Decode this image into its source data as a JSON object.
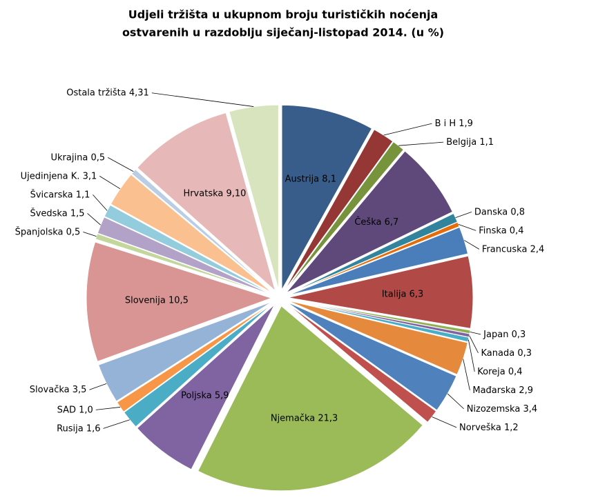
{
  "chart_data": {
    "type": "pie",
    "title": [
      "Udjeli tržišta u ukupnom broju turističkih noćenja",
      "ostvarenih u razdoblju siječanj-listopad 2014. (u %)"
    ],
    "categories": [
      "Austrija",
      "B i H",
      "Belgija",
      "Češka",
      "Danska",
      "Finska",
      "Francuska",
      "Italija",
      "Japan",
      "Kanada",
      "Koreja",
      "Mađarska",
      "Nizozemska",
      "Norveška",
      "Njemačka",
      "Poljska",
      "Rusija",
      "SAD",
      "Slovačka",
      "Slovenija",
      "Španjolska",
      "Švedska",
      "Švicarska",
      "Ujedinjena K.",
      "Ukrajina",
      "Hrvatska",
      "Ostala tržišta"
    ],
    "values": [
      8.1,
      1.9,
      1.1,
      6.7,
      0.8,
      0.4,
      2.4,
      6.3,
      0.3,
      0.3,
      0.4,
      2.9,
      3.4,
      1.2,
      21.3,
      5.9,
      1.6,
      1.0,
      3.5,
      10.5,
      0.5,
      1.5,
      1.1,
      3.1,
      0.5,
      9.1,
      4.31
    ],
    "value_labels": [
      "8,1",
      "1,9",
      "1,1",
      "6,7",
      "0,8",
      "0,4",
      "2,4",
      "6,3",
      "0,3",
      "0,3",
      "0,4",
      "2,9",
      "3,4",
      "1,2",
      "21,3",
      "5,9",
      "1,6",
      "1,0",
      "3,5",
      "10,5",
      "0,5",
      "1,5",
      "1,1",
      "3,1",
      "0,5",
      "9,10",
      "4,31"
    ],
    "colors": [
      "#385d8a",
      "#953735",
      "#77933c",
      "#5f497a",
      "#31849b",
      "#e46c0a",
      "#4a7ebb",
      "#b14a47",
      "#8fb052",
      "#8064a2",
      "#4bacc6",
      "#e58a3d",
      "#4f81bd",
      "#c0504d",
      "#9bbb59",
      "#8064a2",
      "#4bacc6",
      "#f79646",
      "#95b3d7",
      "#d99594",
      "#c3d69b",
      "#b3a2c7",
      "#93cddd",
      "#fac090",
      "#b9cde5",
      "#e6b9b8",
      "#d7e4bd"
    ]
  }
}
